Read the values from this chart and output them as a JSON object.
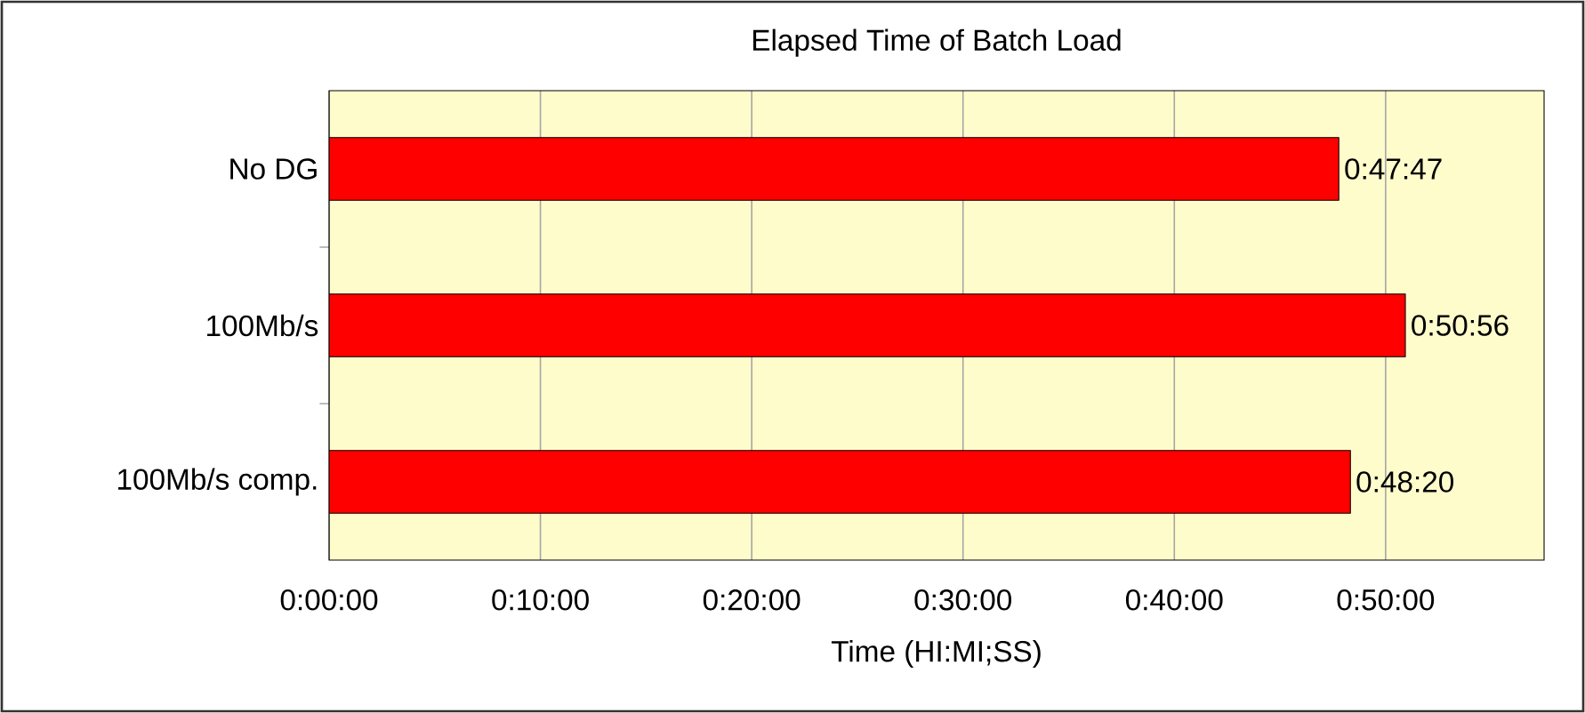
{
  "chart_data": {
    "type": "bar",
    "orientation": "horizontal",
    "title": "Elapsed Time of Batch Load",
    "xlabel": "Time (HI:MI;SS)",
    "categories": [
      "No DG",
      "100Mb/s",
      "100Mb/s comp."
    ],
    "values": [
      47.7833,
      50.9333,
      48.3333
    ],
    "value_labels": [
      "0:47:47",
      "0:50:56",
      "0:48:20"
    ],
    "color": "#ff0000",
    "xlim": [
      0,
      57.5
    ],
    "xticks": [
      {
        "value": 0,
        "label": "0:00:00"
      },
      {
        "value": 10,
        "label": "0:10:00"
      },
      {
        "value": 20,
        "label": "0:20:00"
      },
      {
        "value": 30,
        "label": "0:30:00"
      },
      {
        "value": 40,
        "label": "0:40:00"
      },
      {
        "value": 50,
        "label": "0:50:00"
      }
    ],
    "grid": "x"
  }
}
